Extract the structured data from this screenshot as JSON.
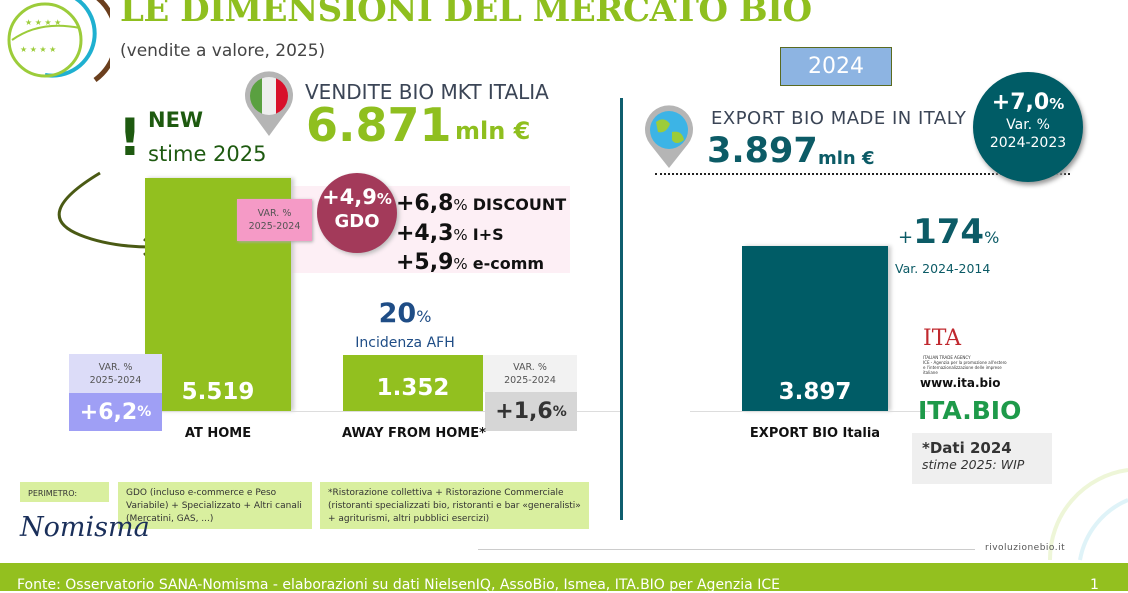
{
  "header": {
    "title": "LE DIMENSIONI DEL MERCATO BIO",
    "subtitle": "(vendite a valore, 2025)"
  },
  "new_note": {
    "mark": "!",
    "line1": "NEW",
    "line2": "stime 2025"
  },
  "italy": {
    "label": "VENDITE BIO MKT ITALIA",
    "value": "6.871",
    "unit": "mln €"
  },
  "gdo": {
    "var_label_1": "VAR. %",
    "var_label_2": "2025-2024",
    "circle_value": "+4,9",
    "circle_pct": "%",
    "circle_label": "GDO",
    "channels": [
      {
        "value": "+6,8",
        "pct": "%",
        "name": "DISCOUNT"
      },
      {
        "value": "+4,3",
        "pct": "%",
        "name": "I+S"
      },
      {
        "value": "+5,9",
        "pct": "%",
        "name": "e-comm"
      }
    ]
  },
  "afh_share": {
    "value": "20",
    "pct": "%",
    "label": "Incidenza AFH"
  },
  "at_home_var": {
    "label_1": "VAR. %",
    "label_2": "2025-2024",
    "value": "+6,2",
    "pct": "%"
  },
  "afh_var": {
    "label_1": "VAR. %",
    "label_2": "2025-2024",
    "value": "+1,6",
    "pct": "%"
  },
  "export": {
    "year_badge": "2024",
    "label": "EXPORT BIO MADE IN ITALY",
    "value": "3.897",
    "unit": "mln €",
    "circle_value": "+7,0",
    "circle_pct": "%",
    "circle_l1": "Var. %",
    "circle_l2": "2024-2023",
    "growth_plus": "+",
    "growth_value": "174",
    "growth_pct": "%",
    "growth_label": "Var. 2024-2014"
  },
  "logos": {
    "ita_agency": "ITA",
    "ita_sub1": "ITALIAN TRADE AGENCY",
    "ita_sub2": "ICE - Agenzia per la promozione all'estero e l'internazionalizzazione delle imprese italiane",
    "ita_url": "www.ita.bio",
    "ita_bio": "ITA.BIO",
    "nomisma": "Nomisma"
  },
  "dati_note": {
    "line1": "*Dati 2024",
    "line2": "stime 2025: WIP"
  },
  "footnotes": {
    "perimetro": "PERIMETRO:",
    "home_def": "GDO (incluso e-commerce e Peso Variabile) + Specializzato + Altri canali (Mercatini, GAS, ...)",
    "afh_def": "*Ristorazione collettiva + Ristorazione Commerciale (ristoranti specializzati bio, ristoranti e bar «generalisti» + agriturismi, altri pubblici esercizi)"
  },
  "site": "rivoluzionebio.it",
  "footer": {
    "source": "Fonte: Osservatorio SANA-Nomisma - elaborazioni su dati NielsenIQ, AssoBio, Ismea, ITA.BIO per Agenzia ICE",
    "page": "1"
  },
  "colors": {
    "green": "#92c01f",
    "teal": "#005c66",
    "gdo": "#a33a5a",
    "pink": "#f59ac6",
    "lavender": "#9f9ff5"
  },
  "chart_data": {
    "type": "bar",
    "unit": "mln €",
    "categories": [
      "AT HOME",
      "AWAY FROM HOME*",
      "EXPORT BIO Italia"
    ],
    "values": [
      5519,
      1352,
      3897
    ],
    "labels": [
      "5.519",
      "1.352",
      "3.897"
    ],
    "ylim": [
      0,
      5519
    ],
    "grid": false
  }
}
